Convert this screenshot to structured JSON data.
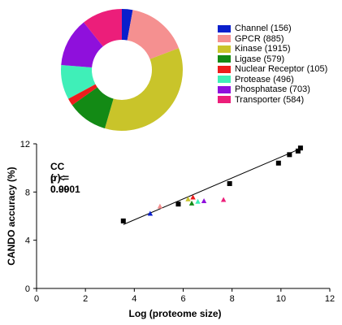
{
  "chart_data": [
    {
      "type": "pie",
      "style": "donut",
      "start_angle_deg": 0,
      "direction": "clockwise",
      "slices": [
        {
          "label": "Channel (156)",
          "value": 156,
          "color": "#0A1FCC"
        },
        {
          "label": "GPCR (885)",
          "value": 885,
          "color": "#F59090"
        },
        {
          "label": "Kinase (1915)",
          "value": 1915,
          "color": "#C9C42A"
        },
        {
          "label": "Ligase (579)",
          "value": 579,
          "color": "#138A15"
        },
        {
          "label": "Nuclear Receptor (105)",
          "value": 105,
          "color": "#EE1C1C"
        },
        {
          "label": "Protease (496)",
          "value": 496,
          "color": "#3FEFB8"
        },
        {
          "label": "Phosphatase (703)",
          "value": 703,
          "color": "#8F10DC"
        },
        {
          "label": "Transporter (584)",
          "value": 584,
          "color": "#EC1E7A"
        }
      ],
      "legend_position": "right"
    },
    {
      "type": "scatter",
      "xlabel": "Log (proteome size)",
      "ylabel": "CANDO accuracy (%)",
      "xlim": [
        0,
        12
      ],
      "ylim": [
        0,
        12
      ],
      "xticks": [
        "0",
        "2",
        "4",
        "6",
        "8",
        "10",
        "12"
      ],
      "yticks": [
        "0",
        "4",
        "8",
        "12"
      ],
      "grid": false,
      "annotations": [
        "CC (r) = 0.99",
        "p < 0.0001"
      ],
      "trendline": {
        "x": [
          3.55,
          10.8
        ],
        "y": [
          5.3,
          11.6
        ]
      },
      "series": [
        {
          "marker": "square",
          "color": "#000000",
          "points": [
            [
              3.55,
              5.6
            ],
            [
              5.8,
              7.0
            ],
            [
              7.9,
              8.7
            ],
            [
              9.9,
              10.4
            ],
            [
              10.35,
              11.1
            ],
            [
              10.7,
              11.4
            ],
            [
              10.8,
              11.65
            ]
          ]
        },
        {
          "marker": "triangle",
          "color": "#0A1FCC",
          "points": [
            [
              4.65,
              6.2
            ]
          ]
        },
        {
          "marker": "triangle",
          "color": "#F59090",
          "points": [
            [
              5.05,
              6.8
            ]
          ]
        },
        {
          "marker": "triangle",
          "color": "#C9C42A",
          "points": [
            [
              6.2,
              7.4
            ]
          ]
        },
        {
          "marker": "triangle",
          "color": "#EE1C1C",
          "points": [
            [
              6.4,
              7.55
            ]
          ]
        },
        {
          "marker": "triangle",
          "color": "#138A15",
          "points": [
            [
              6.35,
              7.05
            ]
          ]
        },
        {
          "marker": "triangle",
          "color": "#3FEFB8",
          "points": [
            [
              6.6,
              7.2
            ]
          ]
        },
        {
          "marker": "triangle",
          "color": "#8F10DC",
          "points": [
            [
              6.85,
              7.25
            ]
          ]
        },
        {
          "marker": "triangle",
          "color": "#EC1E7A",
          "points": [
            [
              7.65,
              7.35
            ]
          ]
        }
      ]
    }
  ]
}
